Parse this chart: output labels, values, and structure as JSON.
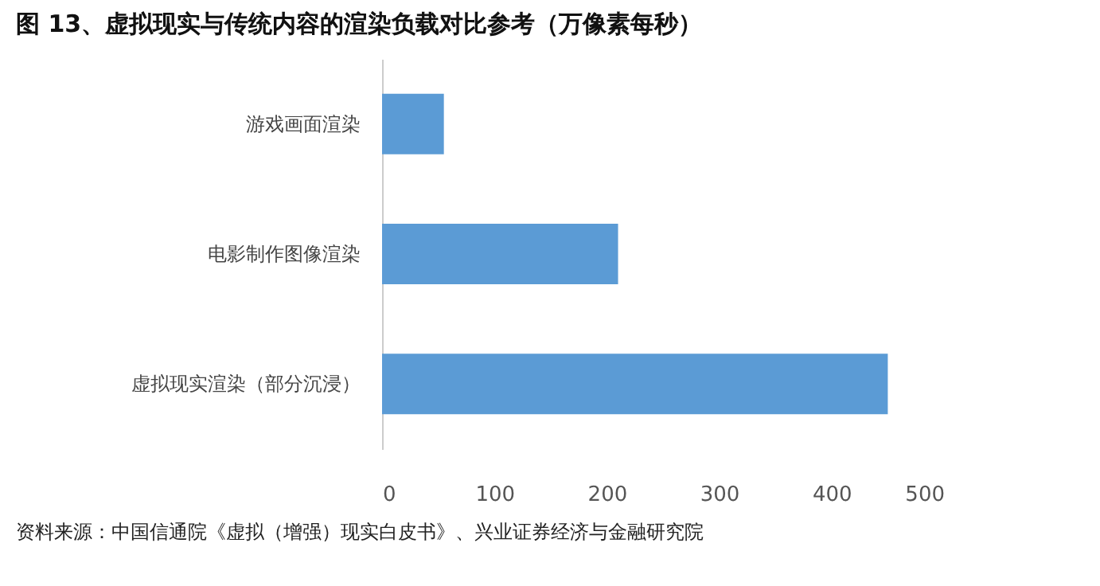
{
  "chart_data": {
    "type": "bar",
    "orientation": "horizontal",
    "title": "图 13、虚拟现实与传统内容的渲染负载对比参考（万像素每秒）",
    "categories": [
      "游戏画面渲染",
      "电影制作图像渲染",
      "虚拟现实渲染（部分沉浸）"
    ],
    "values": [
      55,
      210,
      450
    ],
    "color": "#5b9bd5",
    "xlim": [
      0,
      500
    ],
    "xticks": [
      0,
      100,
      200,
      300,
      400,
      500
    ],
    "grid": false,
    "annotations": [
      "资料来源：中国信通院《虚拟（增强）现实白皮书》、兴业证券经济与金融研究院"
    ]
  }
}
